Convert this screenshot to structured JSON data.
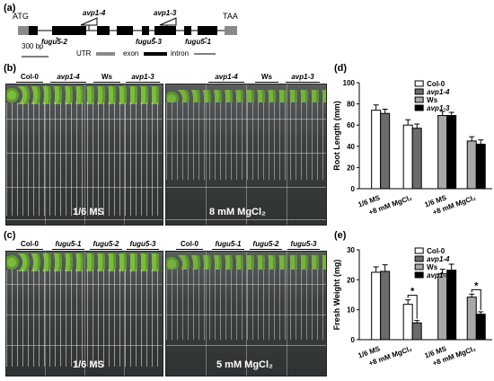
{
  "panel_a": {
    "label": "(a)",
    "atg": "ATG",
    "taa": "TAA",
    "scale": "300 bp",
    "legend": {
      "utr": "UTR",
      "exon": "exon",
      "intron": "intron"
    },
    "avp": [
      "avp1-4",
      "avp1-3"
    ],
    "fugu": [
      "fugu5-2",
      "fugu5-3",
      "fugu5-1"
    ],
    "colors": {
      "utr": "#8a8a8a",
      "exon": "#000000"
    }
  },
  "panel_b": {
    "label": "(b)",
    "left_headers": [
      "Col-0",
      "avp1-4",
      "Ws",
      "avp1-3"
    ],
    "right_headers": [
      "Ws",
      "avp1-3"
    ],
    "right_header_1": "avp1-4",
    "left_condition": "1/6 MS",
    "right_condition": "8 mM MgCl₂"
  },
  "panel_c": {
    "label": "(c)",
    "left_headers": [
      "Col-0",
      "fugu5-1",
      "fugu5-2",
      "fugu5-3"
    ],
    "right_headers": [
      "Col-0",
      "fugu5-1",
      "fugu5-2",
      "fugu5-3"
    ],
    "left_condition": "1/6 MS",
    "right_condition": "5 mM MgCl₂"
  },
  "chart_data": [
    {
      "panel": "(d)",
      "type": "bar",
      "ylabel": "Root Length (mm)",
      "ylim": [
        0,
        100
      ],
      "yticks": [
        0,
        20,
        40,
        60,
        80,
        100
      ],
      "categories": [
        "1/6 MS",
        "+8 mM MgCl₂",
        "1/6 MS",
        "+8 mM MgCl₂"
      ],
      "series": [
        {
          "name": "Col-0",
          "color": "#ffffff",
          "values": [
            74,
            60,
            null,
            null
          ],
          "err": [
            5,
            5,
            null,
            null
          ]
        },
        {
          "name": "avp1-4",
          "color": "#6b6b6b",
          "values": [
            71,
            57,
            null,
            null
          ],
          "err": [
            4,
            4,
            null,
            null
          ]
        },
        {
          "name": "Ws",
          "color": "#a8a8a8",
          "values": [
            null,
            null,
            69,
            45
          ],
          "err": [
            null,
            null,
            4,
            4
          ]
        },
        {
          "name": "avp1-3",
          "color": "#000000",
          "values": [
            null,
            null,
            69,
            42
          ],
          "err": [
            null,
            null,
            3,
            4
          ]
        }
      ],
      "significance": []
    },
    {
      "panel": "(e)",
      "type": "bar",
      "ylabel": "Fresh Weight (mg)",
      "ylim": [
        0,
        30
      ],
      "yticks": [
        0,
        10,
        20,
        30
      ],
      "categories": [
        "1/6 MS",
        "+8 mM MgCl₂",
        "1/6 MS",
        "+8 mM MgCl₂"
      ],
      "series": [
        {
          "name": "Col-0",
          "color": "#ffffff",
          "values": [
            22.5,
            11.8,
            null,
            null
          ],
          "err": [
            1.8,
            1.5,
            null,
            null
          ]
        },
        {
          "name": "avp1-4",
          "color": "#6b6b6b",
          "values": [
            22.8,
            5.6,
            null,
            null
          ],
          "err": [
            2.2,
            0.8,
            null,
            null
          ]
        },
        {
          "name": "Ws",
          "color": "#a8a8a8",
          "values": [
            null,
            null,
            22,
            14.2
          ],
          "err": [
            null,
            null,
            1.5,
            1
          ]
        },
        {
          "name": "avp1-3",
          "color": "#000000",
          "values": [
            null,
            null,
            23.2,
            8.5
          ],
          "err": [
            null,
            null,
            2,
            0.8
          ]
        }
      ],
      "significance": [
        "*",
        "*"
      ]
    }
  ]
}
